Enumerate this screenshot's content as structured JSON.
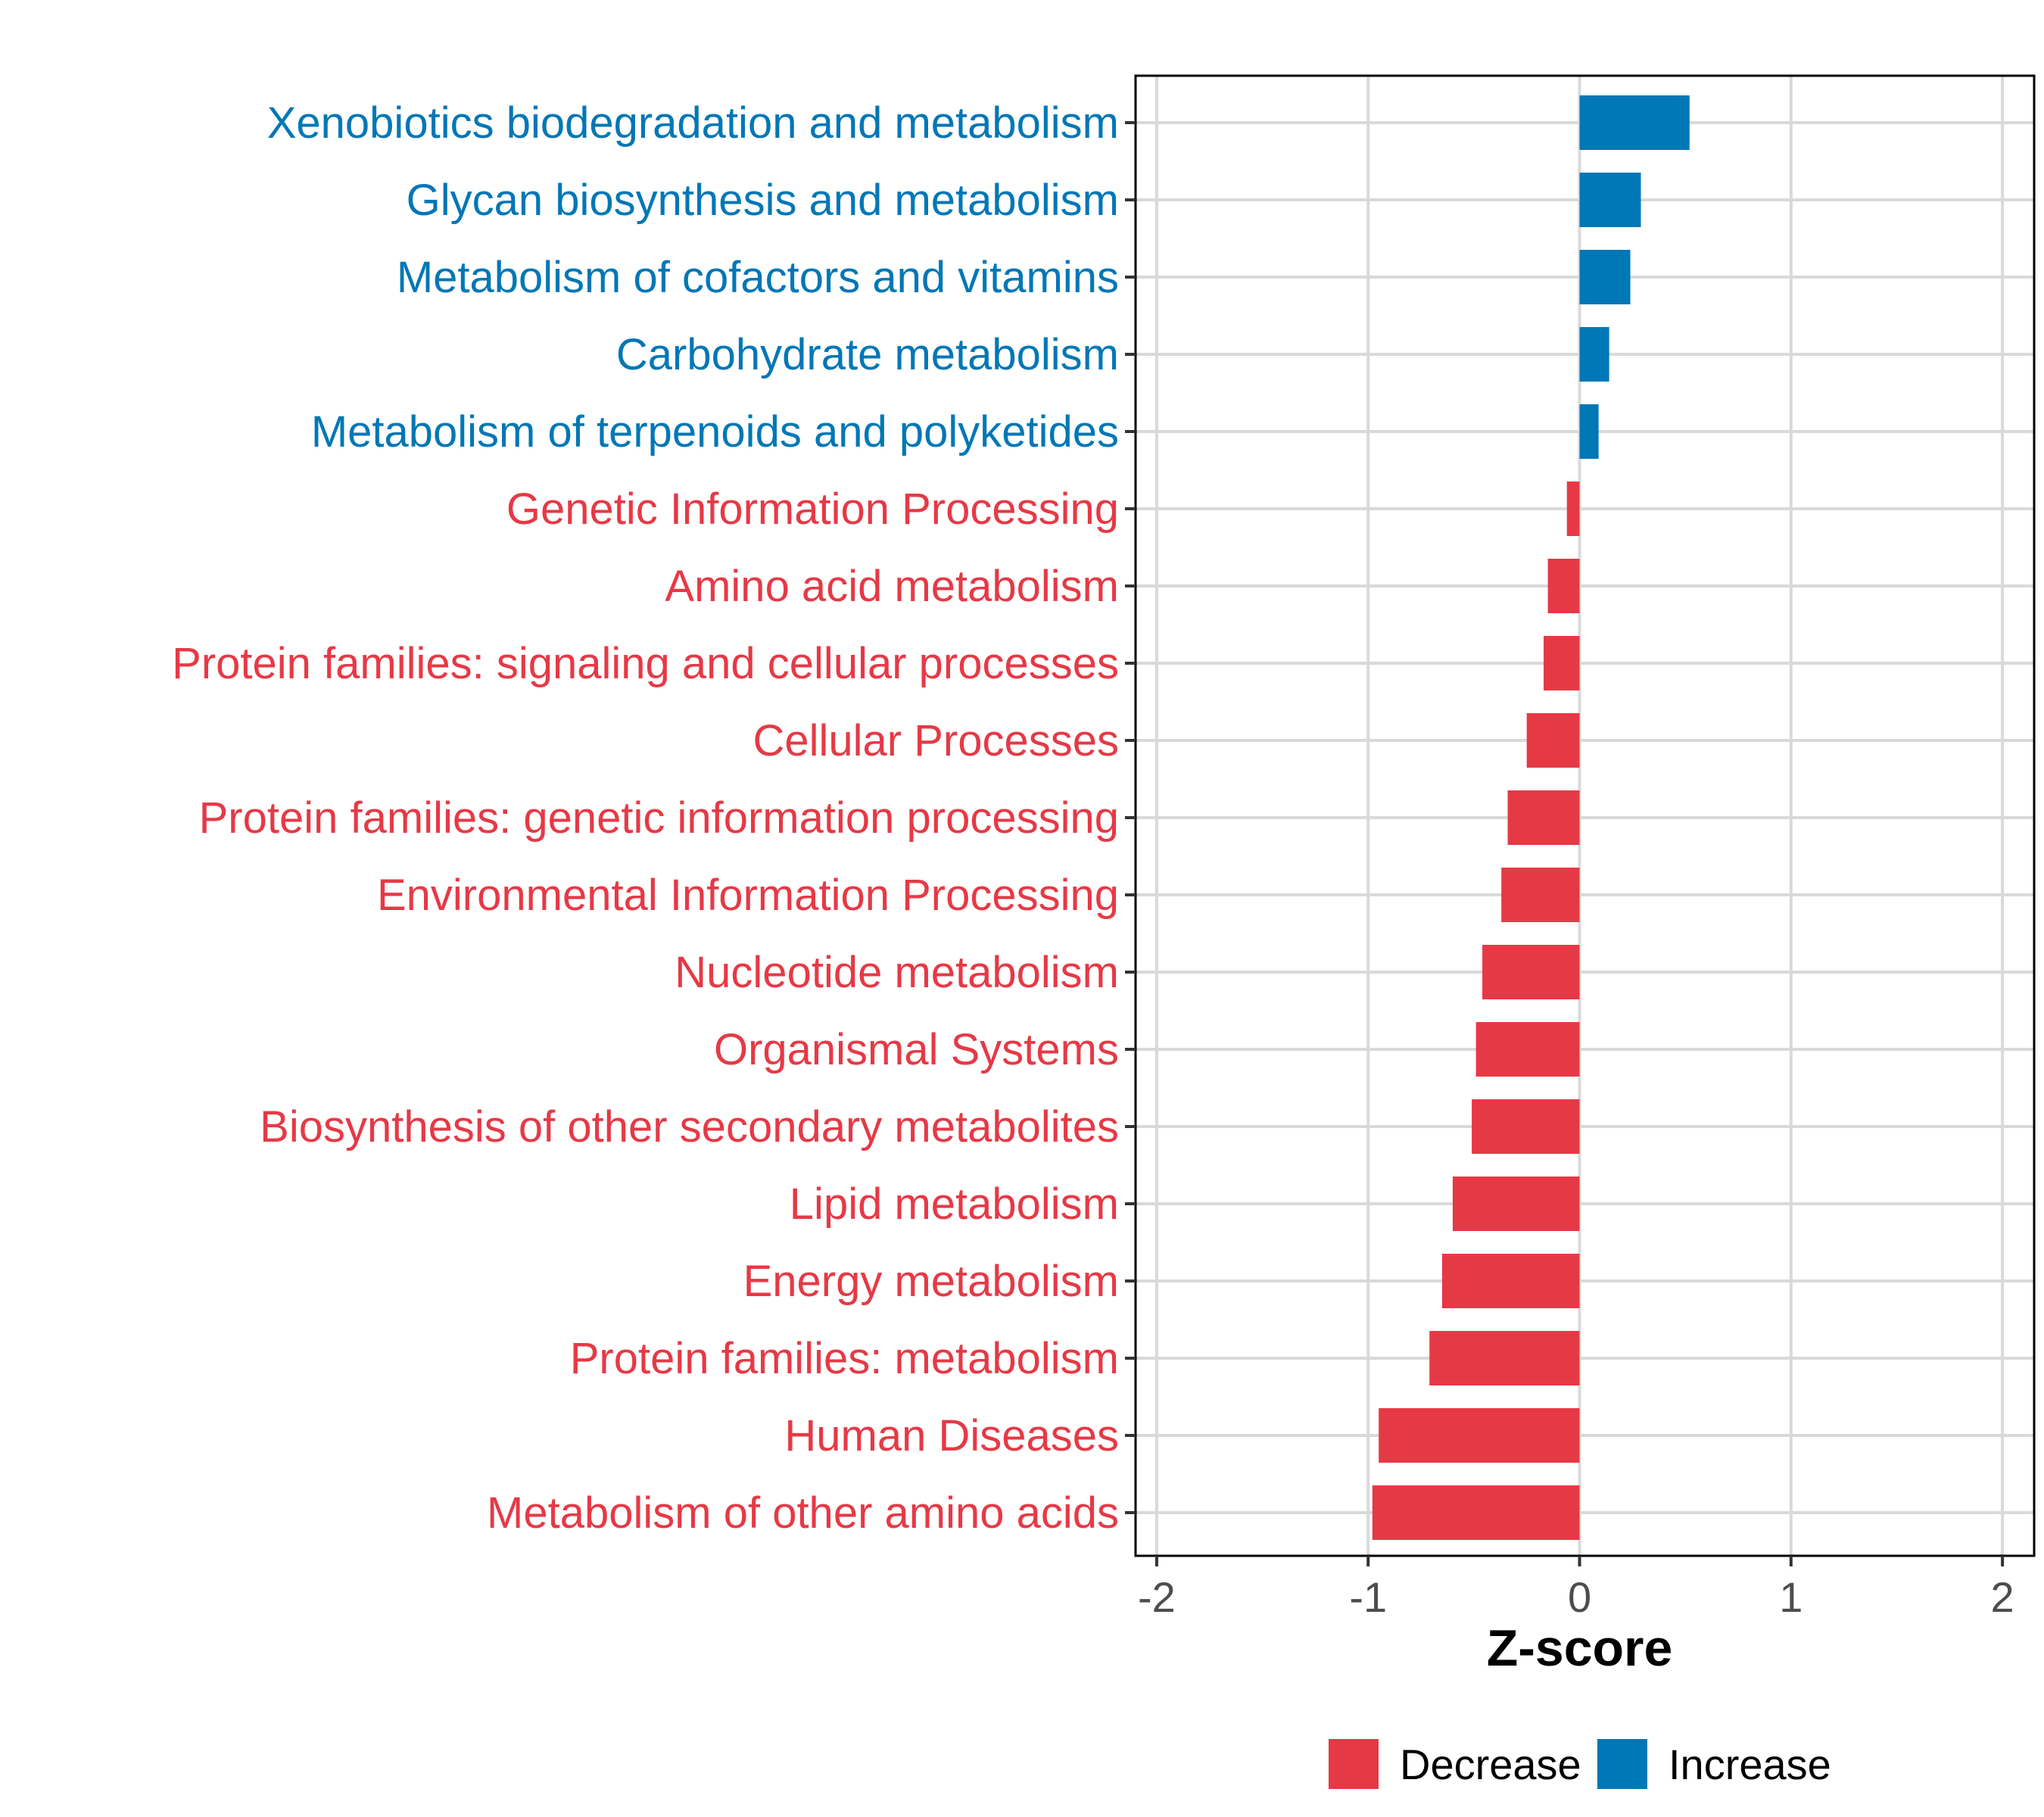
{
  "chart_data": {
    "type": "bar",
    "orientation": "horizontal",
    "title": "",
    "xlabel": "Z-score",
    "ylabel": "",
    "xlim": [
      -2.1,
      2.15
    ],
    "xticks": [
      -2,
      -1,
      0,
      1,
      2
    ],
    "xtick_labels": [
      "-2",
      "-1",
      "0",
      "1",
      "2"
    ],
    "grid": true,
    "legend_position": "bottom",
    "colors": {
      "Decrease": "#e63946",
      "Increase": "#0077b6"
    },
    "legend": [
      {
        "name": "Decrease",
        "color": "#e63946"
      },
      {
        "name": "Increase",
        "color": "#0077b6"
      }
    ],
    "categories": [
      "Xenobiotics biodegradation and metabolism",
      "Glycan biosynthesis and metabolism",
      "Metabolism of cofactors and vitamins",
      "Carbohydrate metabolism",
      "Metabolism of terpenoids and polyketides",
      "Genetic Information Processing",
      "Amino acid metabolism",
      "Protein families: signaling and cellular processes",
      "Cellular Processes",
      "Protein families: genetic information processing",
      "Environmental Information Processing",
      "Nucleotide metabolism",
      "Organismal Systems",
      "Biosynthesis of other secondary metabolites",
      "Lipid metabolism",
      "Energy metabolism",
      "Protein families: metabolism",
      "Human Diseases",
      "Metabolism of other amino acids"
    ],
    "values": [
      0.52,
      0.29,
      0.24,
      0.14,
      0.09,
      -0.06,
      -0.15,
      -0.17,
      -0.25,
      -0.34,
      -0.37,
      -0.46,
      -0.49,
      -0.51,
      -0.6,
      -0.65,
      -0.71,
      -0.95,
      -0.98
    ],
    "groups": [
      "Increase",
      "Increase",
      "Increase",
      "Increase",
      "Increase",
      "Decrease",
      "Decrease",
      "Decrease",
      "Decrease",
      "Decrease",
      "Decrease",
      "Decrease",
      "Decrease",
      "Decrease",
      "Decrease",
      "Decrease",
      "Decrease",
      "Decrease",
      "Decrease"
    ]
  }
}
